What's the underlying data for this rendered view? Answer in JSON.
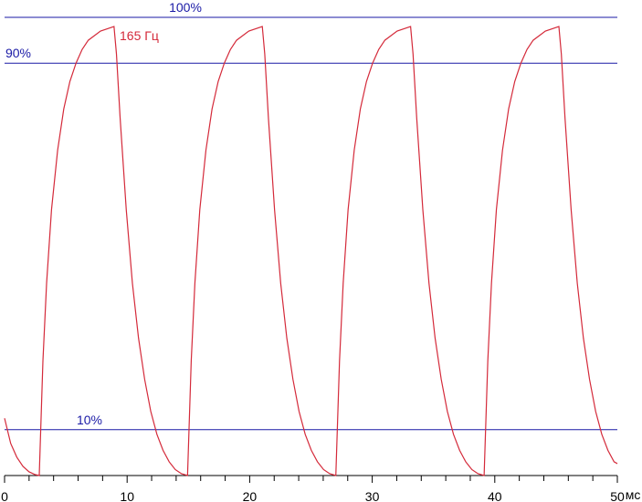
{
  "chart_data": {
    "type": "line",
    "annotation": "165 Гц",
    "x_label": "мс",
    "xlim": [
      0,
      50
    ],
    "ylim": [
      0,
      100
    ],
    "xticks": [
      0,
      10,
      20,
      30,
      40,
      50
    ],
    "xminorticks": [
      2,
      4,
      6,
      8,
      12,
      14,
      16,
      18,
      22,
      24,
      26,
      28,
      32,
      34,
      36,
      38,
      42,
      44,
      46,
      48
    ],
    "reference_lines": [
      {
        "value": 100,
        "label": "100%"
      },
      {
        "value": 90,
        "label": "90%"
      },
      {
        "value": 10,
        "label": "10%"
      }
    ],
    "reference_color": "#1a1aa6",
    "x": [
      0,
      0.5,
      1,
      1.5,
      2,
      2.5,
      2.83,
      3.13,
      3.43,
      3.83,
      4.33,
      4.83,
      5.33,
      5.83,
      6.33,
      6.83,
      7.83,
      8.93,
      9.13,
      9.43,
      9.93,
      10.43,
      10.93,
      11.43,
      11.93,
      12.43,
      12.93,
      13.43,
      13.93,
      14.43,
      14.93,
      15.23,
      15.53,
      15.93,
      16.43,
      16.93,
      17.43,
      17.93,
      18.43,
      18.93,
      19.93,
      21.03,
      21.23,
      21.53,
      22.03,
      22.53,
      23.03,
      23.53,
      24.03,
      24.53,
      25.03,
      25.53,
      26.03,
      26.53,
      27.03,
      27.33,
      27.63,
      28.03,
      28.53,
      29.03,
      29.53,
      30.03,
      30.53,
      31.03,
      32.03,
      33.13,
      33.33,
      33.63,
      34.13,
      34.63,
      35.13,
      35.63,
      36.13,
      36.63,
      37.13,
      37.63,
      38.13,
      38.63,
      39.13,
      39.43,
      39.73,
      40.13,
      40.63,
      41.13,
      41.63,
      42.13,
      42.63,
      43.13,
      44.13,
      45.23,
      45.43,
      45.73,
      46.23,
      46.73,
      47.23,
      47.73,
      48.23,
      48.73,
      49.23,
      49.73,
      50
    ],
    "series": [
      {
        "color": "#d42a3a",
        "values": [
          12.5,
          7,
          4,
          2,
          0.8,
          0.2,
          0,
          25,
          42,
          58,
          71,
          80,
          86,
          90,
          93,
          95,
          97,
          98,
          92,
          78,
          58,
          42,
          30,
          21,
          14,
          9,
          5.5,
          3,
          1.3,
          0.4,
          0,
          25,
          42,
          58,
          71,
          80,
          86,
          90,
          93,
          95,
          97,
          98,
          92,
          78,
          58,
          42,
          30,
          21,
          14,
          9,
          5.5,
          3,
          1.3,
          0.4,
          0,
          25,
          42,
          58,
          71,
          80,
          86,
          90,
          93,
          95,
          97,
          98,
          92,
          78,
          58,
          42,
          30,
          21,
          14,
          9,
          5.5,
          3,
          1.3,
          0.4,
          0,
          25,
          42,
          58,
          71,
          80,
          86,
          90,
          93,
          95,
          97,
          98,
          92,
          78,
          58,
          42,
          30,
          21,
          14,
          9,
          5.5,
          3,
          2.6
        ]
      }
    ]
  }
}
